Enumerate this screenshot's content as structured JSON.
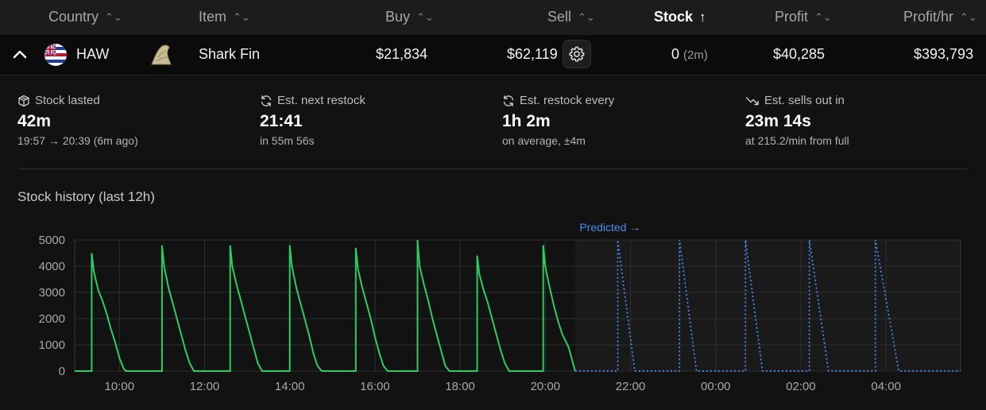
{
  "table": {
    "columns": [
      {
        "label": "Country",
        "sort": "⌃⌄"
      },
      {
        "label": "Item",
        "sort": "⌃⌄"
      },
      {
        "label": "Buy",
        "sort": "⌃⌄"
      },
      {
        "label": "Sell",
        "sort": "⌃⌄"
      },
      {
        "label": "Stock",
        "sort": "↑"
      },
      {
        "label": "Profit",
        "sort": "⌃⌄"
      },
      {
        "label": "Profit/hr",
        "sort": "⌃⌄"
      }
    ],
    "row": {
      "country": "HAW",
      "item": "Shark Fin",
      "buy": "$21,834",
      "sell": "$62,119",
      "stock": "0",
      "stock_age": "(2m)",
      "profit": "$40,285",
      "profit_hr": "$393,793"
    }
  },
  "stats": [
    {
      "icon": "box-icon",
      "label": "Stock lasted",
      "value": "42m",
      "sub": "19:57 → 20:39 (6m ago)"
    },
    {
      "icon": "refresh-icon",
      "label": "Est. next restock",
      "value": "21:41",
      "sub": "in 55m 56s"
    },
    {
      "icon": "refresh-icon",
      "label": "Est. restock every",
      "value": "1h 2m",
      "sub": "on average, ±4m"
    },
    {
      "icon": "trend-down-icon",
      "label": "Est. sells out in",
      "value": "23m 14s",
      "sub": "at 215.2/min from full"
    }
  ],
  "chart_data": {
    "type": "line",
    "title": "Stock history (last 12h)",
    "annotation": "Predicted →",
    "x_tick_labels": [
      "10:00",
      "12:00",
      "14:00",
      "16:00",
      "18:00",
      "20:00",
      "22:00",
      "00:00",
      "02:00",
      "04:00"
    ],
    "x_tick_hours": [
      10,
      12,
      14,
      16,
      18,
      20,
      22,
      24,
      26,
      28
    ],
    "xlim_hours": [
      8.95,
      29.75
    ],
    "ylim": [
      0,
      5000
    ],
    "y_ticks": [
      0,
      1000,
      2000,
      3000,
      4000,
      5000
    ],
    "predicted_start_hour": 20.7,
    "colors": {
      "actual": "#2ecc63",
      "predicted": "#4a8cf0"
    },
    "series": [
      {
        "style": "step",
        "points": [
          [
            8.95,
            0
          ],
          [
            9.35,
            0
          ],
          [
            9.35,
            4500
          ],
          [
            9.4,
            3800
          ],
          [
            9.5,
            3100
          ],
          [
            9.6,
            2700
          ],
          [
            9.7,
            2200
          ],
          [
            9.8,
            1600
          ],
          [
            9.9,
            1100
          ],
          [
            10.0,
            500
          ],
          [
            10.1,
            100
          ],
          [
            10.15,
            0
          ],
          [
            11.0,
            0
          ],
          [
            11.0,
            4800
          ],
          [
            11.05,
            4000
          ],
          [
            11.15,
            3200
          ],
          [
            11.25,
            2600
          ],
          [
            11.35,
            2000
          ],
          [
            11.45,
            1400
          ],
          [
            11.55,
            800
          ],
          [
            11.65,
            300
          ],
          [
            11.75,
            0
          ],
          [
            12.6,
            0
          ],
          [
            12.6,
            4800
          ],
          [
            12.65,
            4000
          ],
          [
            12.75,
            3300
          ],
          [
            12.85,
            2700
          ],
          [
            12.95,
            2100
          ],
          [
            13.05,
            1500
          ],
          [
            13.15,
            900
          ],
          [
            13.25,
            300
          ],
          [
            13.35,
            0
          ],
          [
            14.0,
            0
          ],
          [
            14.0,
            4800
          ],
          [
            14.05,
            4000
          ],
          [
            14.15,
            3200
          ],
          [
            14.25,
            2600
          ],
          [
            14.35,
            2000
          ],
          [
            14.45,
            1400
          ],
          [
            14.55,
            700
          ],
          [
            14.65,
            200
          ],
          [
            14.75,
            0
          ],
          [
            15.55,
            0
          ],
          [
            15.55,
            4700
          ],
          [
            15.6,
            3900
          ],
          [
            15.7,
            3200
          ],
          [
            15.8,
            2600
          ],
          [
            15.9,
            2000
          ],
          [
            16.0,
            1300
          ],
          [
            16.1,
            700
          ],
          [
            16.2,
            200
          ],
          [
            16.3,
            0
          ],
          [
            17.0,
            0
          ],
          [
            17.0,
            5000
          ],
          [
            17.05,
            4000
          ],
          [
            17.15,
            3300
          ],
          [
            17.25,
            2700
          ],
          [
            17.35,
            2000
          ],
          [
            17.45,
            1400
          ],
          [
            17.55,
            800
          ],
          [
            17.65,
            200
          ],
          [
            17.75,
            0
          ],
          [
            18.4,
            0
          ],
          [
            18.4,
            4400
          ],
          [
            18.45,
            3700
          ],
          [
            18.55,
            3100
          ],
          [
            18.65,
            2600
          ],
          [
            18.75,
            2000
          ],
          [
            18.85,
            1400
          ],
          [
            18.95,
            800
          ],
          [
            19.05,
            300
          ],
          [
            19.15,
            0
          ],
          [
            19.95,
            0
          ],
          [
            19.95,
            4800
          ],
          [
            20.0,
            4000
          ],
          [
            20.1,
            3200
          ],
          [
            20.2,
            2500
          ],
          [
            20.3,
            1900
          ],
          [
            20.4,
            1400
          ],
          [
            20.55,
            900
          ],
          [
            20.65,
            300
          ],
          [
            20.7,
            0
          ]
        ]
      },
      {
        "style": "dotted",
        "points": [
          [
            20.7,
            0
          ],
          [
            21.7,
            0
          ],
          [
            21.7,
            5000
          ],
          [
            22.1,
            0
          ],
          [
            23.15,
            0
          ],
          [
            23.15,
            5000
          ],
          [
            23.55,
            0
          ],
          [
            24.7,
            0
          ],
          [
            24.7,
            5000
          ],
          [
            25.1,
            0
          ],
          [
            26.2,
            0
          ],
          [
            26.2,
            5000
          ],
          [
            26.65,
            0
          ],
          [
            27.75,
            0
          ],
          [
            27.75,
            5000
          ],
          [
            28.3,
            0
          ],
          [
            29.75,
            0
          ]
        ]
      }
    ]
  }
}
